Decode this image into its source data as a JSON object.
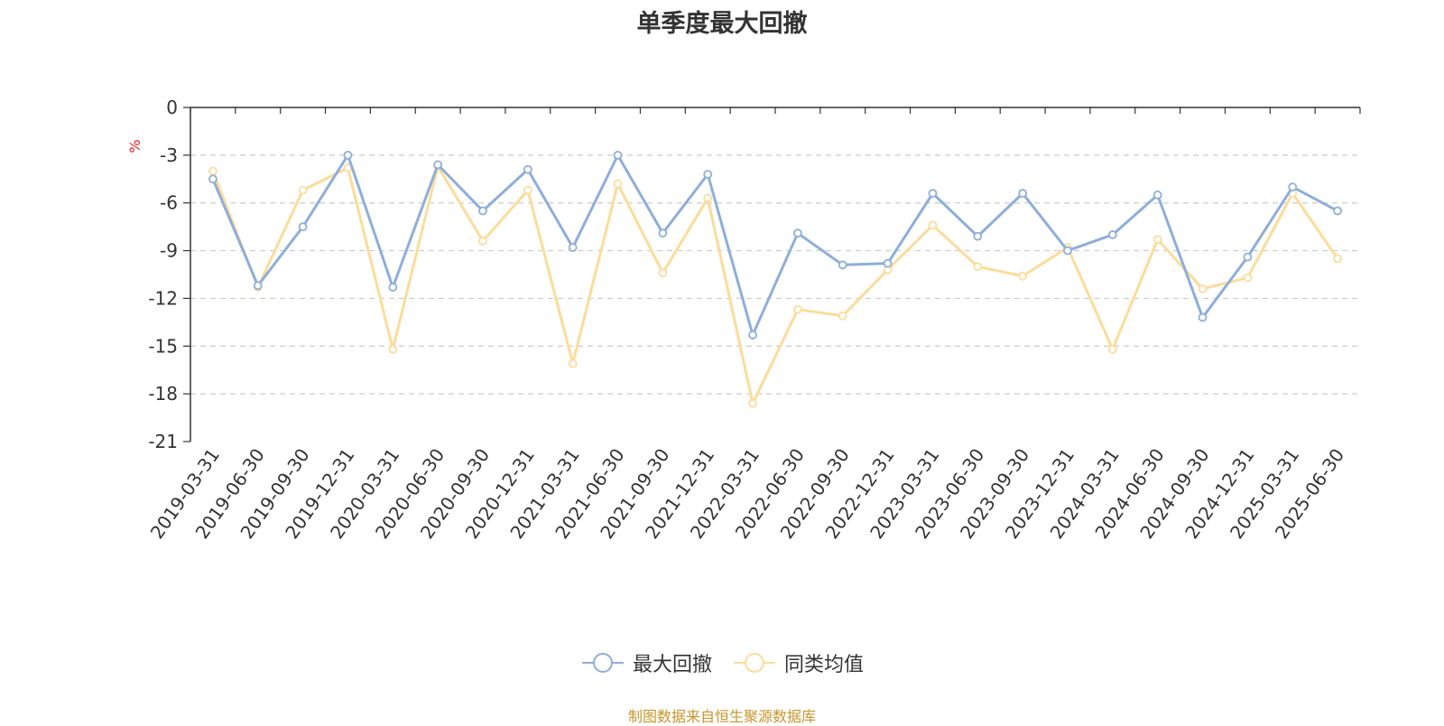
{
  "chart_data": {
    "type": "line",
    "title": "单季度最大回撤",
    "ylabel": "%",
    "ylim": [
      -21,
      0
    ],
    "yticks": [
      "0",
      "-3",
      "-6",
      "-9",
      "-12",
      "-15",
      "-18",
      "-21"
    ],
    "grid": true,
    "legend_position": "bottom",
    "categories": [
      "2019-03-31",
      "2019-06-30",
      "2019-09-30",
      "2019-12-31",
      "2020-03-31",
      "2020-06-30",
      "2020-09-30",
      "2020-12-31",
      "2021-03-31",
      "2021-06-30",
      "2021-09-30",
      "2021-12-31",
      "2022-03-31",
      "2022-06-30",
      "2022-09-30",
      "2022-12-31",
      "2023-03-31",
      "2023-06-30",
      "2023-09-30",
      "2023-12-31",
      "2024-03-31",
      "2024-06-30",
      "2024-09-30",
      "2024-12-31",
      "2025-03-31",
      "2025-06-30"
    ],
    "series": [
      {
        "name": "最大回撤",
        "color": "#8eaedb",
        "values": [
          -4.5,
          -11.2,
          -7.5,
          -3.0,
          -11.3,
          -3.6,
          -6.5,
          -3.9,
          -8.8,
          -3.0,
          -7.9,
          -4.2,
          -14.3,
          -7.9,
          -9.9,
          -9.8,
          -5.4,
          -8.1,
          -5.4,
          -9.0,
          -8.0,
          -5.5,
          -13.2,
          -9.4,
          -5.0,
          -6.5
        ]
      },
      {
        "name": "同类均值",
        "color": "#fcdc9a",
        "values": [
          -4.0,
          -11.3,
          -5.2,
          -3.8,
          -15.2,
          -3.7,
          -8.4,
          -5.2,
          -16.1,
          -4.8,
          -10.4,
          -5.7,
          -18.6,
          -12.7,
          -13.1,
          -10.2,
          -7.4,
          -10.0,
          -10.6,
          -8.8,
          -15.2,
          -8.3,
          -11.4,
          -10.7,
          -5.4,
          -9.5
        ]
      }
    ]
  },
  "source_note": "制图数据来自恒生聚源数据库"
}
